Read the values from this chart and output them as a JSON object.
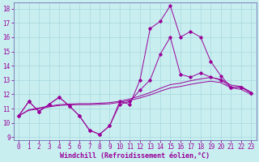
{
  "xlabel": "Windchill (Refroidissement éolien,°C)",
  "bg_color": "#c8eef0",
  "grid_color": "#a8d8dc",
  "line_color": "#990099",
  "spine_color": "#7070b0",
  "xlim_min": -0.5,
  "xlim_max": 23.5,
  "ylim_min": 8.8,
  "ylim_max": 18.4,
  "xticks": [
    0,
    1,
    2,
    3,
    4,
    5,
    6,
    7,
    8,
    9,
    10,
    11,
    12,
    13,
    14,
    15,
    16,
    17,
    18,
    19,
    20,
    21,
    22,
    23
  ],
  "yticks": [
    9,
    10,
    11,
    12,
    13,
    14,
    15,
    16,
    17,
    18
  ],
  "series0": [
    10.5,
    11.5,
    10.8,
    11.3,
    11.8,
    11.2,
    10.5,
    9.5,
    9.2,
    9.8,
    11.5,
    11.3,
    13.0,
    16.6,
    17.1,
    18.2,
    16.0,
    16.4,
    16.0,
    14.3,
    13.3,
    12.5,
    12.5,
    12.1
  ],
  "series1": [
    10.5,
    11.5,
    10.8,
    11.3,
    11.8,
    11.2,
    10.5,
    9.5,
    9.2,
    9.8,
    11.3,
    11.5,
    12.3,
    13.0,
    14.8,
    16.0,
    13.4,
    13.2,
    13.5,
    13.2,
    13.0,
    12.5,
    12.5,
    12.1
  ],
  "series2": [
    10.5,
    10.92,
    11.05,
    11.18,
    11.28,
    11.32,
    11.35,
    11.35,
    11.38,
    11.42,
    11.52,
    11.68,
    11.88,
    12.12,
    12.42,
    12.68,
    12.78,
    12.95,
    13.08,
    13.18,
    13.05,
    12.65,
    12.55,
    12.15
  ],
  "series3": [
    10.5,
    10.88,
    10.98,
    11.12,
    11.22,
    11.26,
    11.28,
    11.28,
    11.3,
    11.34,
    11.44,
    11.58,
    11.75,
    11.96,
    12.22,
    12.45,
    12.55,
    12.7,
    12.82,
    12.92,
    12.82,
    12.45,
    12.35,
    12.0
  ],
  "xlabel_fontsize": 6,
  "tick_fontsize": 5.5
}
